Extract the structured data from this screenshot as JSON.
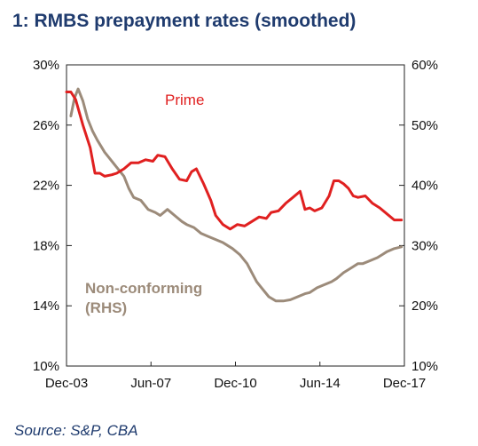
{
  "title": "1:  RMBS prepayment rates (smoothed)",
  "source": "Source: S&P, CBA",
  "chart_data": {
    "type": "line",
    "x_ticks": [
      "Dec-03",
      "Jun-07",
      "Dec-10",
      "Jun-14",
      "Dec-17"
    ],
    "x_range": [
      2003.92,
      2017.92
    ],
    "y_left": {
      "ticks": [
        "30%",
        "26%",
        "22%",
        "18%",
        "14%",
        "10%"
      ],
      "range": [
        10,
        30
      ]
    },
    "y_right": {
      "ticks": [
        "60%",
        "50%",
        "40%",
        "30%",
        "20%",
        "10%"
      ],
      "range": [
        10,
        60
      ]
    },
    "grid": false,
    "series": [
      {
        "name": "Prime",
        "axis": "left",
        "color": "#e02020",
        "x": [
          2003.92,
          2004.1,
          2004.3,
          2004.6,
          2004.9,
          2005.1,
          2005.3,
          2005.5,
          2005.8,
          2006.0,
          2006.3,
          2006.6,
          2006.9,
          2007.2,
          2007.5,
          2007.7,
          2008.0,
          2008.3,
          2008.6,
          2008.9,
          2009.1,
          2009.3,
          2009.6,
          2009.9,
          2010.1,
          2010.4,
          2010.7,
          2011.0,
          2011.3,
          2011.6,
          2011.9,
          2012.2,
          2012.4,
          2012.7,
          2013.0,
          2013.3,
          2013.6,
          2013.8,
          2014.0,
          2014.2,
          2014.5,
          2014.8,
          2015.0,
          2015.2,
          2015.4,
          2015.6,
          2015.8,
          2016.0,
          2016.3,
          2016.6,
          2016.9,
          2017.2,
          2017.5,
          2017.8
        ],
        "values": [
          28.2,
          28.2,
          27.7,
          26.0,
          24.5,
          22.8,
          22.8,
          22.6,
          22.7,
          22.8,
          23.1,
          23.5,
          23.5,
          23.7,
          23.6,
          24.0,
          23.9,
          23.1,
          22.4,
          22.3,
          22.9,
          23.1,
          22.1,
          21.0,
          20.0,
          19.4,
          19.1,
          19.4,
          19.3,
          19.6,
          19.9,
          19.8,
          20.2,
          20.3,
          20.8,
          21.2,
          21.6,
          20.4,
          20.5,
          20.3,
          20.5,
          21.3,
          22.3,
          22.3,
          22.1,
          21.8,
          21.3,
          21.2,
          21.3,
          20.8,
          20.5,
          20.1,
          19.7,
          19.7
        ]
      },
      {
        "name": "Non-conforming (RHS)",
        "axis": "right",
        "color": "#9c8b7a",
        "x": [
          2004.1,
          2004.25,
          2004.4,
          2004.6,
          2004.8,
          2005.0,
          2005.2,
          2005.5,
          2005.7,
          2006.0,
          2006.3,
          2006.5,
          2006.7,
          2007.0,
          2007.3,
          2007.6,
          2007.8,
          2008.1,
          2008.4,
          2008.7,
          2008.9,
          2009.2,
          2009.5,
          2009.8,
          2010.1,
          2010.4,
          2010.8,
          2011.1,
          2011.4,
          2011.6,
          2011.8,
          2012.0,
          2012.3,
          2012.6,
          2012.9,
          2013.2,
          2013.5,
          2013.8,
          2014.0,
          2014.3,
          2014.6,
          2014.9,
          2015.1,
          2015.4,
          2015.6,
          2015.8,
          2016.0,
          2016.2,
          2016.5,
          2016.8,
          2017.0,
          2017.2,
          2017.5,
          2017.8
        ],
        "values": [
          51.5,
          54.5,
          56.0,
          54.0,
          51.0,
          49.0,
          47.5,
          45.5,
          44.5,
          43.0,
          41.5,
          39.5,
          38.0,
          37.5,
          36.0,
          35.5,
          35.0,
          36.0,
          35.0,
          34.0,
          33.5,
          33.0,
          32.0,
          31.5,
          31.0,
          30.5,
          29.5,
          28.5,
          27.0,
          25.5,
          24.0,
          23.0,
          21.5,
          20.8,
          20.8,
          21.0,
          21.5,
          22.0,
          22.2,
          23.0,
          23.5,
          24.0,
          24.5,
          25.5,
          26.0,
          26.5,
          27.0,
          27.0,
          27.5,
          28.0,
          28.5,
          29.0,
          29.5,
          29.8
        ]
      }
    ],
    "labels": {
      "prime": "Prime",
      "nc_line1": "Non-conforming",
      "nc_line2": "(RHS)"
    }
  }
}
